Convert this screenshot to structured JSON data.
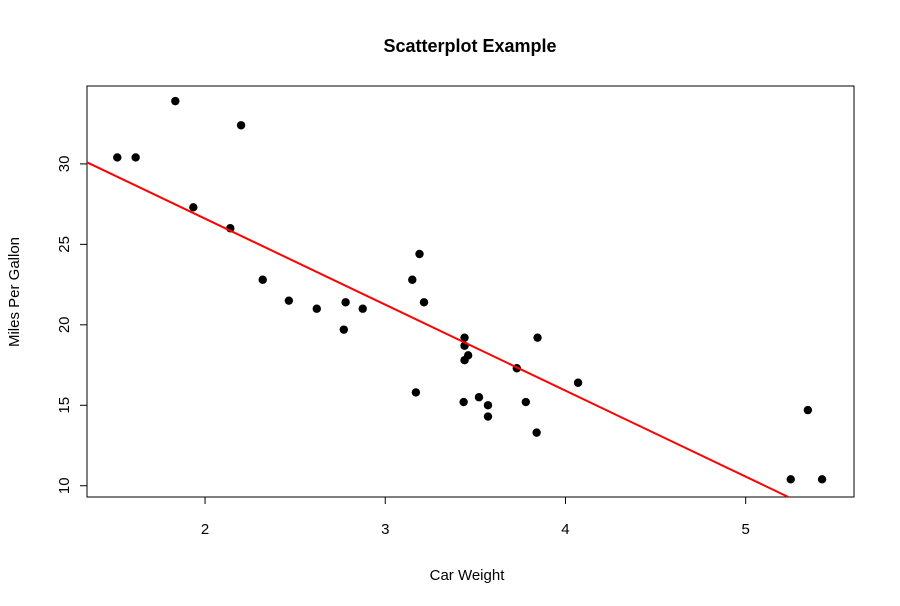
{
  "chart_data": {
    "type": "scatter",
    "title": "Scatterplot Example",
    "xlabel": "Car Weight",
    "ylabel": "Miles Per Gallon",
    "xlim": [
      1.345,
      5.601
    ],
    "ylim": [
      9.3,
      34.84
    ],
    "x_ticks": [
      2,
      3,
      4,
      5
    ],
    "y_ticks": [
      10,
      15,
      20,
      25,
      30
    ],
    "grid": false,
    "legend": "none",
    "point_color": "#000000",
    "line_color": "#ff0000",
    "points": [
      {
        "x": 1.513,
        "y": 30.4
      },
      {
        "x": 1.615,
        "y": 30.4
      },
      {
        "x": 1.835,
        "y": 33.9
      },
      {
        "x": 1.935,
        "y": 27.3
      },
      {
        "x": 2.14,
        "y": 26.0
      },
      {
        "x": 2.2,
        "y": 32.4
      },
      {
        "x": 2.32,
        "y": 22.8
      },
      {
        "x": 2.465,
        "y": 21.5
      },
      {
        "x": 2.62,
        "y": 21.0
      },
      {
        "x": 2.77,
        "y": 19.7
      },
      {
        "x": 2.78,
        "y": 21.4
      },
      {
        "x": 2.875,
        "y": 21.0
      },
      {
        "x": 3.15,
        "y": 22.8
      },
      {
        "x": 3.17,
        "y": 15.8
      },
      {
        "x": 3.19,
        "y": 24.4
      },
      {
        "x": 3.215,
        "y": 21.4
      },
      {
        "x": 3.435,
        "y": 15.2
      },
      {
        "x": 3.44,
        "y": 18.7
      },
      {
        "x": 3.44,
        "y": 19.2
      },
      {
        "x": 3.44,
        "y": 17.8
      },
      {
        "x": 3.46,
        "y": 18.1
      },
      {
        "x": 3.52,
        "y": 15.5
      },
      {
        "x": 3.57,
        "y": 15.0
      },
      {
        "x": 3.57,
        "y": 14.3
      },
      {
        "x": 3.73,
        "y": 17.3
      },
      {
        "x": 3.78,
        "y": 15.2
      },
      {
        "x": 3.84,
        "y": 13.3
      },
      {
        "x": 3.845,
        "y": 19.2
      },
      {
        "x": 4.07,
        "y": 16.4
      },
      {
        "x": 5.25,
        "y": 10.4
      },
      {
        "x": 5.345,
        "y": 14.7
      },
      {
        "x": 5.424,
        "y": 10.4
      }
    ],
    "regression": {
      "intercept": 37.285,
      "slope": -5.344
    }
  }
}
